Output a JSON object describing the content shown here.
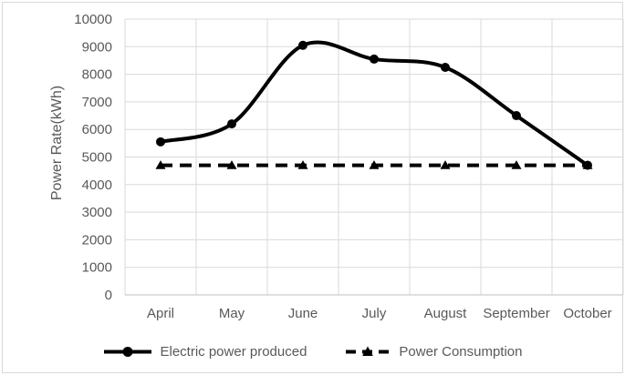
{
  "figure": {
    "background": "#ffffff",
    "border_color": "#d9d9d9"
  },
  "chart_data": {
    "type": "line",
    "title": "",
    "xlabel": "",
    "ylabel": "Power Rate(kWh)",
    "categories": [
      "April",
      "May",
      "June",
      "July",
      "August",
      "September",
      "October"
    ],
    "series": [
      {
        "name": "Electric power produced",
        "values": [
          5550,
          6200,
          9050,
          8550,
          8250,
          6500,
          4700
        ],
        "color": "#000000",
        "line_style": "solid",
        "marker": "circle",
        "smooth": true
      },
      {
        "name": "Power Consumption",
        "values": [
          4700,
          4700,
          4700,
          4700,
          4700,
          4700,
          4700
        ],
        "color": "#000000",
        "line_style": "dashed",
        "marker": "triangle",
        "smooth": false
      }
    ],
    "ylim": [
      0,
      10000
    ],
    "yticks": [
      0,
      1000,
      2000,
      3000,
      4000,
      5000,
      6000,
      7000,
      8000,
      9000,
      10000
    ],
    "grid": true,
    "legend_position": "bottom",
    "grid_color": "#d9d9d9",
    "axis_color": "#bfbfbf",
    "text_color": "#595959",
    "tick_font_size": 15,
    "line_width": 4
  }
}
